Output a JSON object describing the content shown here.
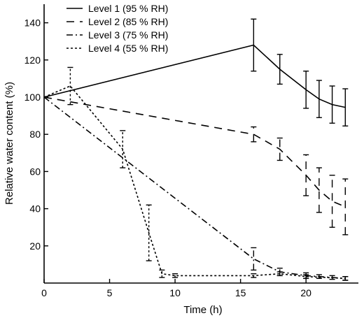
{
  "chart_data": {
    "type": "line",
    "title": "",
    "xlabel": "Time (h)",
    "ylabel": "Relative water content (%)",
    "xlim": [
      0,
      24
    ],
    "ylim": [
      0,
      150
    ],
    "xticks": [
      0,
      5,
      10,
      15,
      20
    ],
    "yticks": [
      20,
      40,
      60,
      80,
      100,
      120,
      140
    ],
    "grid": false,
    "legend_position": "top-left",
    "series": [
      {
        "name": "Level 1 (95 % RH)",
        "linestyle": "solid",
        "x": [
          0,
          16,
          18,
          20,
          21,
          22,
          23
        ],
        "y": [
          100,
          128,
          115,
          104,
          99,
          96,
          94.5
        ],
        "err": [
          0,
          14,
          8,
          10,
          10,
          10,
          10
        ]
      },
      {
        "name": "Level 2 (85 % RH)",
        "linestyle": "dashed",
        "x": [
          0,
          16,
          18,
          20,
          21,
          22,
          23
        ],
        "y": [
          100,
          80,
          72,
          58,
          50,
          44,
          41
        ],
        "err": [
          0,
          4,
          6,
          11,
          12,
          14,
          15
        ]
      },
      {
        "name": "Level 3 (75 % RH)",
        "linestyle": "dash-dot",
        "x": [
          0,
          16,
          18,
          20,
          21,
          22,
          23
        ],
        "y": [
          100,
          13,
          6,
          4,
          3.5,
          3,
          2.5
        ],
        "err": [
          0,
          6,
          2,
          1.5,
          1,
          1,
          1
        ]
      },
      {
        "name": "Level 4 (55 % RH)",
        "linestyle": "dotted",
        "x": [
          0,
          2,
          6,
          8,
          9,
          10,
          16,
          18,
          20,
          23
        ],
        "y": [
          100,
          106,
          72,
          27,
          5,
          4,
          4,
          5,
          3.5,
          2.5
        ],
        "err": [
          0,
          10,
          10,
          15,
          2,
          1,
          1,
          1,
          1,
          1
        ]
      }
    ]
  }
}
